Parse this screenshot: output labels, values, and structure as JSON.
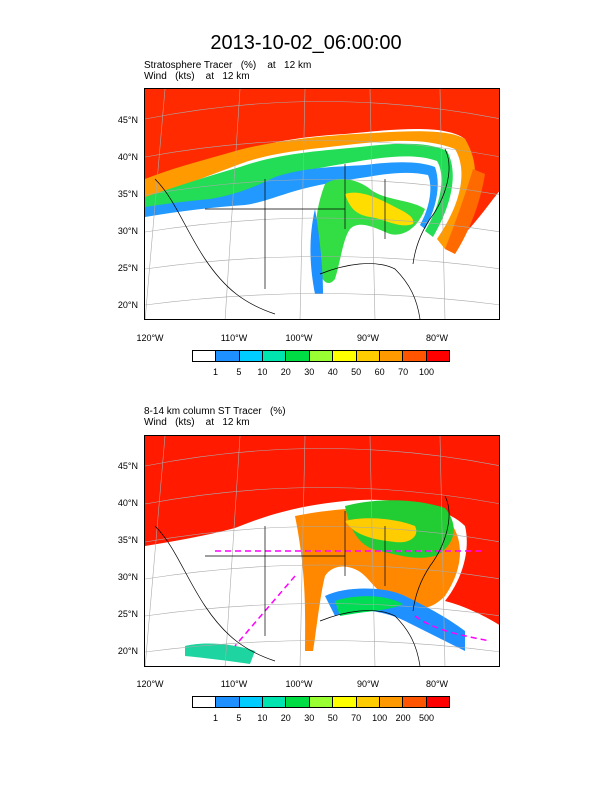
{
  "title": "2013-10-02_06:00:00",
  "panels": [
    {
      "label_line1": "Stratosphere Tracer   (%)    at   12 km",
      "label_line2": "Wind   (kts)    at   12 km",
      "colorbar_labels": [
        "1",
        "5",
        "10",
        "20",
        "30",
        "40",
        "50",
        "60",
        "70",
        "100"
      ]
    },
    {
      "label_line1": "8-14 km column ST Tracer   (%)",
      "label_line2": "Wind   (kts)    at   12 km",
      "colorbar_labels": [
        "1",
        "5",
        "10",
        "20",
        "30",
        "50",
        "70",
        "100",
        "200",
        "500"
      ]
    }
  ],
  "lat_labels": [
    "45°N",
    "40°N",
    "35°N",
    "30°N",
    "25°N",
    "20°N"
  ],
  "lon_labels": [
    "120°W",
    "110°W",
    "100°W",
    "90°W",
    "80°W"
  ],
  "colorbar_colors": [
    "#ffffff",
    "#1e90ff",
    "#00ccff",
    "#00e5b0",
    "#00dd44",
    "#99ff33",
    "#ffff00",
    "#ffcc00",
    "#ff9900",
    "#ff5500",
    "#ff0000"
  ]
}
